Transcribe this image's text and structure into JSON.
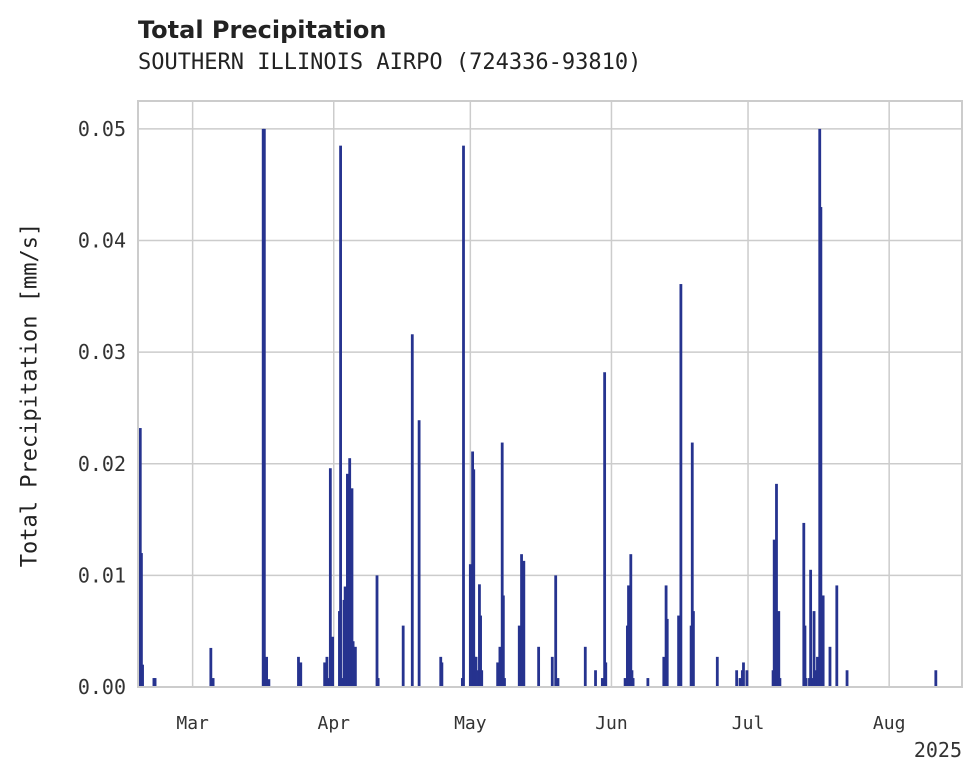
{
  "chart_data": {
    "type": "bar",
    "title": "Total Precipitation",
    "subtitle": "SOUTHERN ILLINOIS AIRPO (724336-93810)",
    "ylabel": "Total Precipitation [mm/s]",
    "xlabel": "",
    "x_range": [
      "2025-02-17",
      "2025-08-17"
    ],
    "ylim": [
      0,
      0.0525
    ],
    "y_ticks": [
      "0.00",
      "0.01",
      "0.02",
      "0.03",
      "0.04",
      "0.05"
    ],
    "x_ticks": [
      {
        "label": "Mar",
        "date": "2025-03-01"
      },
      {
        "label": "Apr",
        "date": "2025-04-01"
      },
      {
        "label": "May",
        "date": "2025-05-01"
      },
      {
        "label": "Jun",
        "date": "2025-06-01"
      },
      {
        "label": "Jul",
        "date": "2025-07-01"
      },
      {
        "label": "Aug",
        "date": "2025-08-01"
      }
    ],
    "x_offset_label": "2025",
    "grid": true,
    "bar_color": "#26338f",
    "points": [
      [
        "2025-02-17 12:00",
        0.0232
      ],
      [
        "2025-02-17 18:00",
        0.012
      ],
      [
        "2025-02-18 00:00",
        0.002
      ],
      [
        "2025-02-20 12:00",
        0.0008
      ],
      [
        "2025-02-20 18:00",
        0.0008
      ],
      [
        "2025-03-05 00:00",
        0.0035
      ],
      [
        "2025-03-05 12:00",
        0.0008
      ],
      [
        "2025-03-16 12:00",
        0.05
      ],
      [
        "2025-03-16 18:00",
        0.05
      ],
      [
        "2025-03-17 06:00",
        0.0027
      ],
      [
        "2025-03-17 18:00",
        0.0007
      ],
      [
        "2025-03-24 06:00",
        0.0027
      ],
      [
        "2025-03-24 18:00",
        0.0022
      ],
      [
        "2025-03-30 00:00",
        0.0022
      ],
      [
        "2025-03-30 12:00",
        0.0027
      ],
      [
        "2025-03-30 18:00",
        0.0008
      ],
      [
        "2025-03-31 06:00",
        0.0196
      ],
      [
        "2025-03-31 18:00",
        0.0045
      ],
      [
        "2025-04-02 06:00",
        0.0068
      ],
      [
        "2025-04-02 12:00",
        0.0485
      ],
      [
        "2025-04-02 18:00",
        0.0008
      ],
      [
        "2025-04-03 06:00",
        0.0078
      ],
      [
        "2025-04-03 12:00",
        0.009
      ],
      [
        "2025-04-04 00:00",
        0.0191
      ],
      [
        "2025-04-04 12:00",
        0.0205
      ],
      [
        "2025-04-04 18:00",
        0.0006
      ],
      [
        "2025-04-05 00:00",
        0.0178
      ],
      [
        "2025-04-05 06:00",
        0.0041
      ],
      [
        "2025-04-05 18:00",
        0.0036
      ],
      [
        "2025-04-10 12:00",
        0.01
      ],
      [
        "2025-04-10 18:00",
        0.0008
      ],
      [
        "2025-04-16 06:00",
        0.0055
      ],
      [
        "2025-04-18 06:00",
        0.0316
      ],
      [
        "2025-04-19 18:00",
        0.0239
      ],
      [
        "2025-04-24 12:00",
        0.0027
      ],
      [
        "2025-04-24 18:00",
        0.0022
      ],
      [
        "2025-04-29 06:00",
        0.0008
      ],
      [
        "2025-04-29 12:00",
        0.0485
      ],
      [
        "2025-05-01 00:00",
        0.011
      ],
      [
        "2025-05-01 12:00",
        0.0211
      ],
      [
        "2025-05-01 18:00",
        0.0195
      ],
      [
        "2025-05-02 00:00",
        0.0027
      ],
      [
        "2025-05-02 06:00",
        0.0027
      ],
      [
        "2025-05-02 12:00",
        0.0015
      ],
      [
        "2025-05-03 00:00",
        0.0092
      ],
      [
        "2025-05-03 06:00",
        0.0064
      ],
      [
        "2025-05-03 12:00",
        0.0015
      ],
      [
        "2025-05-07 00:00",
        0.0022
      ],
      [
        "2025-05-07 12:00",
        0.0036
      ],
      [
        "2025-05-08 00:00",
        0.0219
      ],
      [
        "2025-05-08 06:00",
        0.0082
      ],
      [
        "2025-05-08 12:00",
        0.0008
      ],
      [
        "2025-05-11 18:00",
        0.0055
      ],
      [
        "2025-05-12 06:00",
        0.0119
      ],
      [
        "2025-05-12 18:00",
        0.0113
      ],
      [
        "2025-05-16 00:00",
        0.0036
      ],
      [
        "2025-05-19 00:00",
        0.0027
      ],
      [
        "2025-05-19 18:00",
        0.01
      ],
      [
        "2025-05-20 06:00",
        0.0008
      ],
      [
        "2025-05-26 06:00",
        0.0036
      ],
      [
        "2025-05-28 12:00",
        0.0015
      ],
      [
        "2025-05-30 00:00",
        0.0008
      ],
      [
        "2025-05-30 12:00",
        0.0282
      ],
      [
        "2025-05-30 18:00",
        0.0022
      ],
      [
        "2025-06-04 00:00",
        0.0008
      ],
      [
        "2025-06-04 12:00",
        0.0055
      ],
      [
        "2025-06-04 18:00",
        0.0091
      ],
      [
        "2025-06-05 06:00",
        0.0119
      ],
      [
        "2025-06-05 12:00",
        0.0015
      ],
      [
        "2025-06-05 18:00",
        0.0008
      ],
      [
        "2025-06-09 00:00",
        0.0008
      ],
      [
        "2025-06-12 12:00",
        0.0027
      ],
      [
        "2025-06-13 00:00",
        0.0091
      ],
      [
        "2025-06-13 06:00",
        0.0061
      ],
      [
        "2025-06-15 18:00",
        0.0064
      ],
      [
        "2025-06-16 06:00",
        0.0361
      ],
      [
        "2025-06-18 12:00",
        0.0055
      ],
      [
        "2025-06-18 18:00",
        0.0219
      ],
      [
        "2025-06-19 00:00",
        0.0068
      ],
      [
        "2025-06-24 06:00",
        0.0027
      ],
      [
        "2025-06-28 12:00",
        0.0015
      ],
      [
        "2025-06-29 06:00",
        0.0008
      ],
      [
        "2025-06-29 18:00",
        0.0015
      ],
      [
        "2025-06-30 00:00",
        0.0022
      ],
      [
        "2025-06-30 18:00",
        0.0015
      ],
      [
        "2025-07-06 12:00",
        0.0015
      ],
      [
        "2025-07-06 18:00",
        0.0132
      ],
      [
        "2025-07-07 06:00",
        0.0182
      ],
      [
        "2025-07-07 18:00",
        0.0068
      ],
      [
        "2025-07-08 00:00",
        0.0008
      ],
      [
        "2025-07-13 06:00",
        0.0147
      ],
      [
        "2025-07-13 12:00",
        0.0055
      ],
      [
        "2025-07-13 18:00",
        0.0008
      ],
      [
        "2025-07-14 12:00",
        0.0008
      ],
      [
        "2025-07-14 18:00",
        0.0105
      ],
      [
        "2025-07-15 06:00",
        0.0008
      ],
      [
        "2025-07-15 12:00",
        0.0068
      ],
      [
        "2025-07-16 00:00",
        0.0015
      ],
      [
        "2025-07-16 06:00",
        0.0027
      ],
      [
        "2025-07-16 18:00",
        0.05
      ],
      [
        "2025-07-17 00:00",
        0.043
      ],
      [
        "2025-07-17 12:00",
        0.0082
      ],
      [
        "2025-07-19 00:00",
        0.0036
      ],
      [
        "2025-07-20 12:00",
        0.0091
      ],
      [
        "2025-07-22 18:00",
        0.0015
      ],
      [
        "2025-08-11 06:00",
        0.0015
      ]
    ]
  }
}
